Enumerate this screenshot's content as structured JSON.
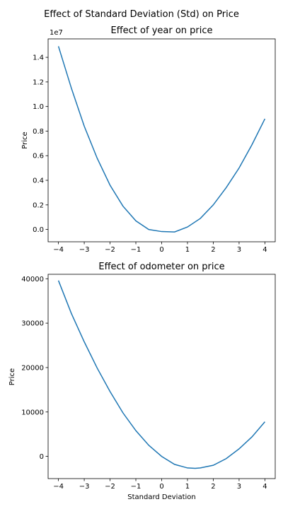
{
  "figure": {
    "suptitle": "Effect of Standard Deviation (Std) on Price",
    "line_color": "#1f77b4"
  },
  "chart_data": [
    {
      "type": "line",
      "title": "Effect of year on price",
      "xlabel": "",
      "ylabel": "Price",
      "offset_label": "1e7",
      "xlim": [
        -4.4,
        4.4
      ],
      "ylim": [
        -1000000,
        15500000
      ],
      "xticks": [
        -4,
        -3,
        -2,
        -1,
        0,
        1,
        2,
        3,
        4
      ],
      "xtick_labels": [
        "−4",
        "−3",
        "−2",
        "−1",
        "0",
        "1",
        "2",
        "3",
        "4"
      ],
      "yticks": [
        0,
        2000000,
        4000000,
        6000000,
        8000000,
        10000000,
        12000000,
        14000000
      ],
      "ytick_labels": [
        "0.0",
        "0.2",
        "0.4",
        "0.6",
        "0.8",
        "1.0",
        "1.2",
        "1.4"
      ],
      "grid": false,
      "series": [
        {
          "x": [
            -4,
            -3.5,
            -3,
            -2.5,
            -2,
            -1.5,
            -1,
            -0.5,
            0,
            0.5,
            1,
            1.5,
            2,
            2.5,
            3,
            3.5,
            4
          ],
          "y": [
            14900000,
            11500000,
            8400000,
            5800000,
            3600000,
            1900000,
            700000,
            0,
            -170000,
            -200000,
            200000,
            900000,
            2000000,
            3400000,
            5000000,
            6900000,
            9000000
          ]
        }
      ]
    },
    {
      "type": "line",
      "title": "Effect of odometer on price",
      "xlabel": "Standard Deviation",
      "ylabel": "Price",
      "xlim": [
        -4.4,
        4.4
      ],
      "ylim": [
        -5000,
        41000
      ],
      "xticks": [
        -4,
        -3,
        -2,
        -1,
        0,
        1,
        2,
        3,
        4
      ],
      "xtick_labels": [
        "−4",
        "−3",
        "−2",
        "−1",
        "0",
        "1",
        "2",
        "3",
        "4"
      ],
      "yticks": [
        0,
        10000,
        20000,
        30000,
        40000
      ],
      "ytick_labels": [
        "0",
        "10000",
        "20000",
        "30000",
        "40000"
      ],
      "grid": false,
      "series": [
        {
          "x": [
            -4,
            -3.5,
            -3,
            -2.5,
            -2,
            -1.5,
            -1,
            -0.5,
            0,
            0.5,
            1,
            1.3,
            1.5,
            2,
            2.5,
            3,
            3.5,
            4
          ],
          "y": [
            39600,
            32200,
            25800,
            19900,
            14600,
            9800,
            5800,
            2500,
            0,
            -1800,
            -2600,
            -2700,
            -2600,
            -2000,
            -500,
            1700,
            4400,
            7800
          ]
        }
      ]
    }
  ]
}
